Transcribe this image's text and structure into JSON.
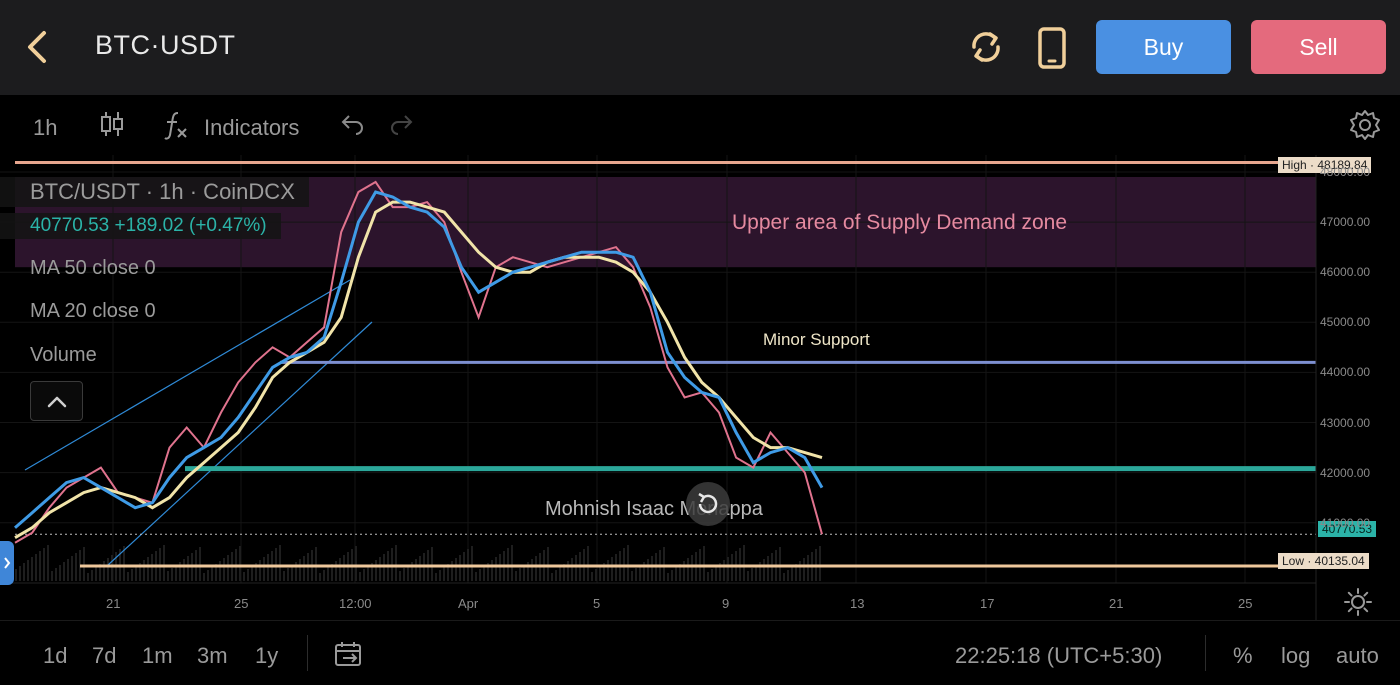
{
  "topbar": {
    "pair": "BTC·USDT",
    "buy_label": "Buy",
    "sell_label": "Sell",
    "colors": {
      "buy": "#4a90e2",
      "sell": "#e46a7d"
    }
  },
  "toolbar": {
    "interval": "1h",
    "indicators_label": "Indicators"
  },
  "legend": {
    "title": "BTC/USDT · 1h · CoinDCX",
    "price_line": "40770.53  +189.02 (+0.47%)",
    "ma50": "MA 50 close 0",
    "ma20": "MA 20 close 0",
    "volume": "Volume"
  },
  "annotations": {
    "supply_zone": "Upper area of Supply Demand zone",
    "minor_support": "Minor Support",
    "watermark": "Mohnish Isaac Moriappa"
  },
  "price_scale": {
    "high_tag": "High · 48189.84",
    "last_tag": "40770.53",
    "low_tag": "Low · 40135.04",
    "labels": [
      "48000.00",
      "47000.00",
      "46000.00",
      "45000.00",
      "44000.00",
      "43000.00",
      "42000.00",
      "41000.00"
    ]
  },
  "time_scale": {
    "labels": [
      "21",
      "25",
      "12:00",
      "Apr",
      "5",
      "9",
      "13",
      "17",
      "21",
      "25"
    ]
  },
  "bottombar": {
    "ranges": [
      "1d",
      "7d",
      "1m",
      "3m",
      "1y"
    ],
    "clock": "22:25:18 (UTC+5:30)",
    "percent_label": "%",
    "log_label": "log",
    "auto_label": "auto"
  },
  "chart_data": {
    "type": "line",
    "series": [
      {
        "name": "BTC/USDT",
        "values": [
          40600,
          40800,
          41300,
          41700,
          41900,
          42100,
          41600,
          41500,
          41400,
          42500,
          42900,
          42500,
          43200,
          43800,
          44200,
          44500,
          44300,
          44600,
          44900,
          46800,
          47600,
          47800,
          47300,
          47300,
          47400,
          47000,
          46000,
          45100,
          46100,
          46300,
          46200,
          46100,
          46200,
          46300,
          46400,
          46500,
          46100,
          45300,
          44100,
          43500,
          43600,
          43200,
          42300,
          42100,
          42800,
          42400,
          42000,
          40770
        ]
      },
      {
        "name": "MA 20 close 0",
        "values": [
          40900,
          41200,
          41500,
          41800,
          41900,
          41700,
          41500,
          41300,
          41400,
          41900,
          42300,
          42500,
          42700,
          43100,
          43600,
          44100,
          44300,
          44400,
          44700,
          45800,
          47000,
          47600,
          47500,
          47300,
          47200,
          46900,
          46100,
          45600,
          45800,
          46000,
          46100,
          46200,
          46300,
          46400,
          46400,
          46400,
          46300,
          45600,
          44400,
          43900,
          43600,
          43500,
          42800,
          42200,
          42400,
          42500,
          42300,
          41700
        ]
      },
      {
        "name": "MA 50 close 0",
        "values": [
          40700,
          40900,
          41200,
          41400,
          41600,
          41700,
          41600,
          41500,
          41300,
          41500,
          41900,
          42200,
          42500,
          42800,
          43300,
          43900,
          44200,
          44400,
          44600,
          45100,
          46300,
          47200,
          47400,
          47400,
          47300,
          47200,
          46800,
          46400,
          46100,
          46000,
          46000,
          46200,
          46300,
          46300,
          46300,
          46200,
          46000,
          45600,
          45000,
          44300,
          43800,
          43500,
          43100,
          42700,
          42500,
          42500,
          42400,
          42300
        ]
      }
    ],
    "horizontal_levels": {
      "high": 48189.84,
      "minor_support": 44200,
      "support": 42080,
      "low": 40135.04,
      "last": 40770.53
    },
    "supply_zone": [
      46100,
      47900
    ],
    "ylim": [
      40000,
      48300
    ],
    "colors": {
      "price": "#e0738e",
      "ma20": "#3f9be6",
      "ma50": "#f1e4a9",
      "support": "#2ba79a",
      "minor_support": "#8696d2",
      "supply_zone": "#3a1a3a"
    }
  }
}
